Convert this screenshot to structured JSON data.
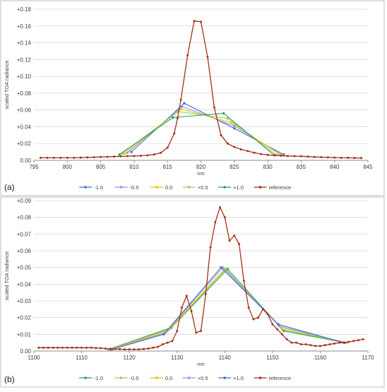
{
  "chart_data": [
    {
      "type": "line",
      "panel_label": "(a)",
      "xlabel": "nm",
      "ylabel": "scaled TOA radiance",
      "xlim": [
        795,
        845
      ],
      "ylim": [
        0,
        0.18
      ],
      "x_ticks": [
        "795",
        "800",
        "805",
        "810",
        "815",
        "820",
        "825",
        "830",
        "835",
        "840",
        "845"
      ],
      "y_ticks": [
        "0.00",
        "+0.02",
        "+0.04",
        "+0.06",
        "+0.08",
        "+0.10",
        "+0.12",
        "+0.14",
        "+0.16",
        "+0.18"
      ],
      "grid": true,
      "legend_position": "bottom",
      "series": [
        {
          "name": "-1.0",
          "color": "#4472c4",
          "x": [
            809.6,
            817.5,
            825.0,
            832.4
          ],
          "y": [
            0.01,
            0.068,
            0.038,
            0.007
          ]
        },
        {
          "name": "-0.5",
          "color": "#9e8ff2",
          "x": [
            809.0,
            817.2,
            825.0,
            832.0
          ],
          "y": [
            0.009,
            0.064,
            0.041,
            0.007
          ]
        },
        {
          "name": "0.0",
          "color": "#e6c400",
          "x": [
            808.6,
            817.0,
            824.6,
            831.8
          ],
          "y": [
            0.008,
            0.061,
            0.045,
            0.007
          ]
        },
        {
          "name": "+0.5",
          "color": "#9bc95a",
          "x": [
            808.2,
            816.6,
            824.0,
            831.4
          ],
          "y": [
            0.008,
            0.058,
            0.05,
            0.006
          ]
        },
        {
          "name": "+1.0",
          "color": "#2ca05a",
          "x": [
            807.8,
            815.8,
            823.4,
            831.0
          ],
          "y": [
            0.007,
            0.051,
            0.056,
            0.006
          ]
        },
        {
          "name": "reference",
          "color": "#a5301b",
          "x": [
            796,
            797,
            798,
            799,
            800,
            801,
            802,
            803,
            804,
            805,
            806,
            807,
            808,
            809,
            810,
            811,
            812,
            813,
            814,
            815,
            816,
            816.5,
            817,
            818,
            819,
            820,
            821,
            822,
            823,
            824,
            825,
            826,
            827,
            828,
            829,
            830,
            831,
            832,
            833,
            834,
            835,
            836,
            837,
            838,
            839,
            840,
            841,
            842,
            843,
            844
          ],
          "y": [
            0.003,
            0.003,
            0.003,
            0.003,
            0.003,
            0.003,
            0.0033,
            0.0035,
            0.0037,
            0.004,
            0.0042,
            0.0045,
            0.0048,
            0.005,
            0.0052,
            0.0055,
            0.006,
            0.007,
            0.009,
            0.015,
            0.032,
            0.05,
            0.072,
            0.125,
            0.166,
            0.165,
            0.123,
            0.063,
            0.03,
            0.02,
            0.016,
            0.013,
            0.011,
            0.009,
            0.0075,
            0.0065,
            0.006,
            0.0055,
            0.0052,
            0.005,
            0.0048,
            0.0045,
            0.004,
            0.0038,
            0.0035,
            0.0033,
            0.003,
            0.003,
            0.0028,
            0.0027
          ]
        }
      ]
    },
    {
      "type": "line",
      "panel_label": "(b)",
      "xlabel": "nm",
      "ylabel": "scaled TOA radiance",
      "xlim": [
        1100,
        1170
      ],
      "ylim": [
        0,
        0.09
      ],
      "x_ticks": [
        "1100",
        "1110",
        "1120",
        "1130",
        "1140",
        "1150",
        "1160",
        "1170"
      ],
      "y_ticks": [
        "0.00",
        "+0.01",
        "+0.02",
        "+0.03",
        "+0.04",
        "+0.05",
        "+0.06",
        "+0.07",
        "+0.08",
        "+0.09"
      ],
      "grid": true,
      "legend_position": "bottom",
      "series": [
        {
          "name": "-1.0",
          "color": "#2ca05a",
          "x": [
            1115.6,
            1128.8,
            1140.6,
            1152.4,
            1165.2
          ],
          "y": [
            0.001,
            0.014,
            0.049,
            0.012,
            0.005
          ]
        },
        {
          "name": "-0.5",
          "color": "#9bc95a",
          "x": [
            1115.8,
            1128.4,
            1140.2,
            1152.0,
            1165.4
          ],
          "y": [
            0.001,
            0.013,
            0.049,
            0.013,
            0.005
          ]
        },
        {
          "name": "0.0",
          "color": "#e6c400",
          "x": [
            1116.0,
            1128.0,
            1140.0,
            1151.8,
            1165.6
          ],
          "y": [
            0.001,
            0.012,
            0.049,
            0.014,
            0.005
          ]
        },
        {
          "name": "+0.5",
          "color": "#9e8ff2",
          "x": [
            1116.2,
            1127.6,
            1139.6,
            1151.4,
            1165.2
          ],
          "y": [
            0.001,
            0.011,
            0.05,
            0.015,
            0.005
          ]
        },
        {
          "name": "+1.0",
          "color": "#4472c4",
          "x": [
            1116.4,
            1127.2,
            1139.2,
            1151.2,
            1165.0
          ],
          "y": [
            0.001,
            0.01,
            0.05,
            0.016,
            0.005
          ]
        },
        {
          "name": "reference",
          "color": "#a5301b",
          "x": [
            1101,
            1102,
            1103,
            1104,
            1105,
            1106,
            1107,
            1108,
            1109,
            1110,
            1111,
            1112,
            1113,
            1114,
            1115,
            1116,
            1117,
            1118,
            1119,
            1120,
            1121,
            1122,
            1123,
            1124,
            1125,
            1126,
            1127,
            1128,
            1129,
            1130,
            1131,
            1132,
            1133,
            1134,
            1135,
            1136,
            1137,
            1138,
            1139,
            1140,
            1141,
            1142,
            1143,
            1144,
            1145,
            1146,
            1147,
            1148,
            1149,
            1150,
            1151,
            1152,
            1153,
            1154,
            1155,
            1156,
            1157,
            1158,
            1159,
            1160,
            1161,
            1162,
            1163,
            1164,
            1165,
            1166,
            1167,
            1168,
            1169
          ],
          "y": [
            0.002,
            0.002,
            0.002,
            0.002,
            0.002,
            0.002,
            0.002,
            0.002,
            0.002,
            0.002,
            0.002,
            0.002,
            0.0018,
            0.0017,
            0.0015,
            0.0013,
            0.0012,
            0.0011,
            0.001,
            0.001,
            0.001,
            0.001,
            0.0012,
            0.0015,
            0.002,
            0.0025,
            0.004,
            0.005,
            0.006,
            0.012,
            0.026,
            0.033,
            0.024,
            0.011,
            0.012,
            0.034,
            0.062,
            0.077,
            0.086,
            0.08,
            0.066,
            0.069,
            0.064,
            0.042,
            0.026,
            0.019,
            0.02,
            0.025,
            0.022,
            0.016,
            0.013,
            0.01,
            0.007,
            0.005,
            0.005,
            0.004,
            0.004,
            0.0035,
            0.003,
            0.003,
            0.0035,
            0.004,
            0.0045,
            0.005,
            0.005,
            0.0055,
            0.006,
            0.0065,
            0.007
          ]
        }
      ]
    }
  ]
}
